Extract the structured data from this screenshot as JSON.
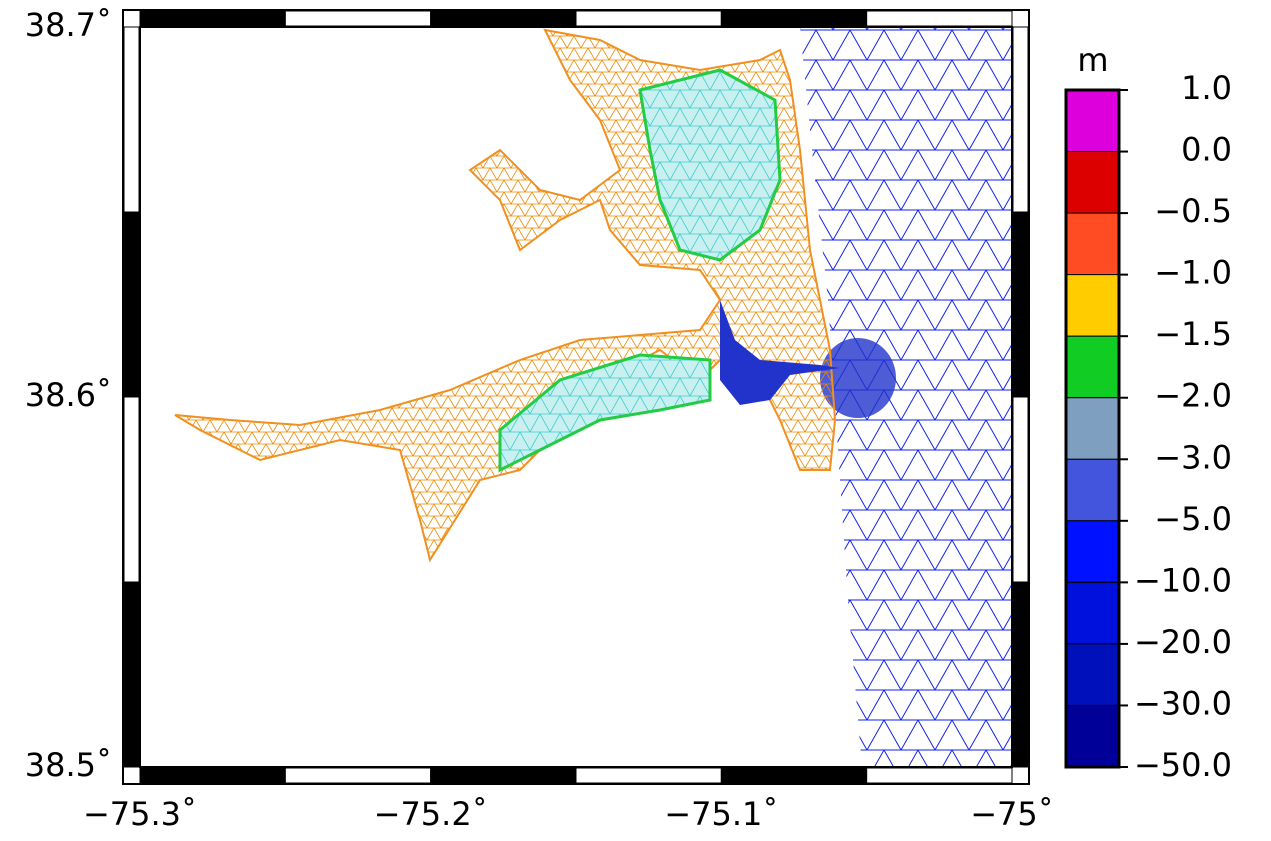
{
  "map": {
    "x_ticks": [
      "−75.3˚",
      "−75.2˚",
      "−75.1˚",
      "−75˚"
    ],
    "y_ticks": [
      "38.7˚",
      "38.6˚",
      "38.5˚"
    ]
  },
  "colorbar": {
    "unit": "m",
    "labels": [
      "1.0",
      "0.0",
      "−0.5",
      "−1.0",
      "−1.5",
      "−2.0",
      "−3.0",
      "−5.0",
      "−10.0",
      "−20.0",
      "−30.0",
      "−50.0"
    ],
    "colors": [
      "#dd00dd",
      "#dd0000",
      "#ff4c22",
      "#ffcc00",
      "#11cc22",
      "#7f9fc0",
      "#4455dd",
      "#0011ff",
      "#0011dd",
      "#0011bb",
      "#000099"
    ]
  }
}
